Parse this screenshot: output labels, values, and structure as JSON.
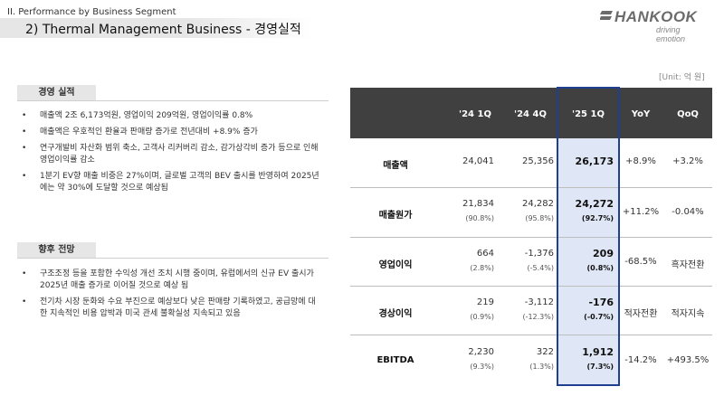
{
  "header": {
    "section": "II. Performance by Business Segment",
    "title": "2) Thermal Management Business - 경영실적"
  },
  "logo": {
    "name": "HANKOOK",
    "tagline": "driving emotion",
    "color": "#6b6b6b"
  },
  "unit": "[Unit: 억 원]",
  "results": {
    "title": "경영 실적",
    "bullets": [
      "매출액 2조 6,173억원, 영업이익 209억원, 영업이익률 0.8%",
      "매출액은 우호적인 환율과 판매량 증가로 전년대비 +8.9% 증가",
      "연구개발비 자산화 범위 축소, 고객사 리커버리 감소, 감가상각비 증가 등으로 인해 영업이익률 감소",
      "1분기 EV향 매출 비중은 27%이며, 글로벌 고객의 BEV 출시를 반영하여 2025년에는 약 30%에 도달할 것으로 예상됨"
    ]
  },
  "outlook": {
    "title": "향후 전망",
    "bullets": [
      "구조조정 등을 포함한 수익성 개선 조치 시행 중이며, 유럽에서의 신규 EV 출시가 2025년 매출 증가로 이어질 것으로 예상 됨",
      "전기차 시장 둔화와 수요 부진으로 예상보다 낮은 판매량 기록하였고, 공급망에 대한 지속적인 비용 압박과 미국 관세 불확실성 지속되고 있음"
    ]
  },
  "bullet_marker": "•",
  "table": {
    "columns": [
      "'24 1Q",
      "'24 4Q",
      "'25 1Q",
      "YoY",
      "QoQ"
    ],
    "highlight_color": "#1f3f91",
    "rows": [
      {
        "label": "매출액",
        "q241": "24,041",
        "q244": "25,356",
        "q251": "26,173",
        "q241_pct": "",
        "q244_pct": "",
        "q251_pct": "",
        "yoy": "+8.9%",
        "qoq": "+3.2%"
      },
      {
        "label": "매출원가",
        "q241": "21,834",
        "q244": "24,282",
        "q251": "24,272",
        "q241_pct": "(90.8%)",
        "q244_pct": "(95.8%)",
        "q251_pct": "(92.7%)",
        "yoy": "+11.2%",
        "qoq": "-0.04%"
      },
      {
        "label": "영업이익",
        "q241": "664",
        "q244": "-1,376",
        "q251": "209",
        "q241_pct": "(2.8%)",
        "q244_pct": "(-5.4%)",
        "q251_pct": "(0.8%)",
        "yoy": "-68.5%",
        "qoq": "흑자전환"
      },
      {
        "label": "경상이익",
        "q241": "219",
        "q244": "-3,112",
        "q251": "-176",
        "q241_pct": "(0.9%)",
        "q244_pct": "(-12.3%)",
        "q251_pct": "(-0.7%)",
        "yoy": "적자전환",
        "qoq": "적자지속"
      },
      {
        "label": "EBITDA",
        "q241": "2,230",
        "q244": "322",
        "q251": "1,912",
        "q241_pct": "(9.3%)",
        "q244_pct": "(1.3%)",
        "q251_pct": "(7.3%)",
        "yoy": "-14.2%",
        "qoq": "+493.5%"
      }
    ]
  }
}
